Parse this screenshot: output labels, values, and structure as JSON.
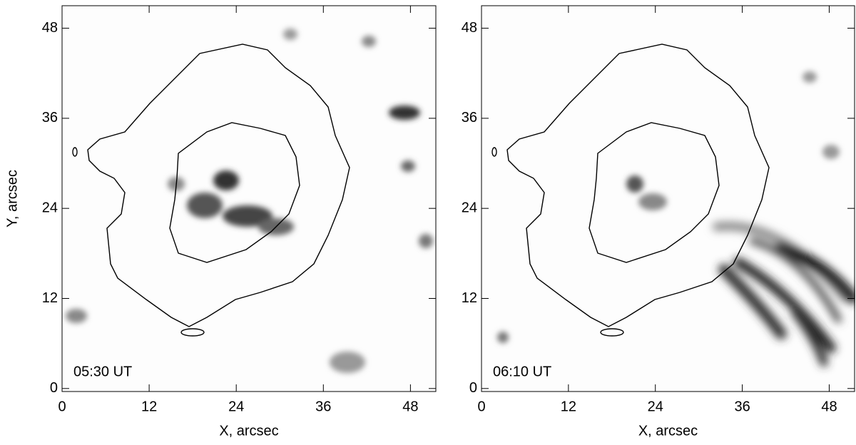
{
  "chart_data": [
    {
      "type": "image",
      "xlabel": "X, arcsec",
      "ylabel": "Y, arcsec",
      "annotation": "05:30 UT",
      "xlim": [
        0,
        51.5
      ],
      "ylim": [
        -0.4,
        51
      ],
      "xticks": [
        0,
        12,
        24,
        36,
        48
      ],
      "yticks": [
        0,
        12,
        24,
        36,
        48
      ]
    },
    {
      "type": "image",
      "xlabel": "X, arcsec",
      "annotation": "06:10 UT",
      "xlim": [
        0,
        51.5
      ],
      "ylim": [
        -0.4,
        51
      ],
      "xticks": [
        0,
        12,
        24,
        36,
        48
      ],
      "yticks": [
        0,
        12,
        24,
        36,
        48
      ]
    }
  ]
}
